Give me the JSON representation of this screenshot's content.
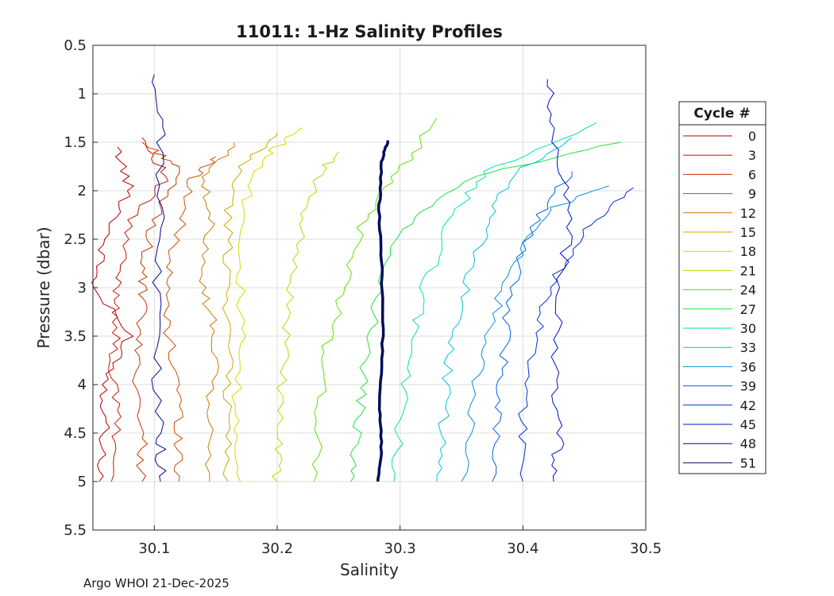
{
  "chart_data": {
    "type": "line",
    "title": "11011: 1-Hz Salinity Profiles",
    "xlabel": "Salinity",
    "ylabel": "Pressure (dbar)",
    "xlim": [
      30.05,
      30.5
    ],
    "ylim": [
      0.5,
      5.5
    ],
    "y_reversed": true,
    "xticks": [
      "30.1",
      "30.2",
      "30.3",
      "30.4",
      "30.5"
    ],
    "xtick_values": [
      30.1,
      30.2,
      30.3,
      30.4,
      30.5
    ],
    "yticks": [
      "0.5",
      "1",
      "1.5",
      "2",
      "2.5",
      "3",
      "3.5",
      "4",
      "4.5",
      "5",
      "5.5"
    ],
    "ytick_values": [
      0.5,
      1,
      1.5,
      2,
      2.5,
      3,
      3.5,
      4,
      4.5,
      5,
      5.5
    ],
    "grid": true,
    "legend_title": "Cycle #",
    "legend_position": "right",
    "highlight_series": "51",
    "series": [
      {
        "name": "0",
        "color": "#b30000",
        "points": [
          [
            30.07,
            1.55
          ],
          [
            30.08,
            2.0
          ],
          [
            30.06,
            2.5
          ],
          [
            30.05,
            3.0
          ],
          [
            30.08,
            3.5
          ],
          [
            30.06,
            4.0
          ],
          [
            30.06,
            4.5
          ],
          [
            30.055,
            5.0
          ]
        ]
      },
      {
        "name": "3",
        "color": "#c01a00",
        "points": [
          [
            30.09,
            1.45
          ],
          [
            30.11,
            1.85
          ],
          [
            30.08,
            2.3
          ],
          [
            30.07,
            2.9
          ],
          [
            30.07,
            3.3
          ],
          [
            30.065,
            3.8
          ],
          [
            30.07,
            4.4
          ],
          [
            30.065,
            5.0
          ]
        ]
      },
      {
        "name": "6",
        "color": "#c83200",
        "points": [
          [
            30.09,
            1.5
          ],
          [
            30.12,
            1.75
          ],
          [
            30.1,
            2.3
          ],
          [
            30.09,
            2.8
          ],
          [
            30.09,
            3.2
          ],
          [
            30.085,
            3.7
          ],
          [
            30.09,
            4.5
          ],
          [
            30.09,
            5.0
          ]
        ]
      },
      {
        "name": "9",
        "color": "#cc5000",
        "points": [
          [
            30.15,
            1.65
          ],
          [
            30.13,
            1.9
          ],
          [
            30.12,
            2.4
          ],
          [
            30.11,
            2.9
          ],
          [
            30.11,
            3.4
          ],
          [
            30.12,
            4.0
          ],
          [
            30.12,
            4.5
          ],
          [
            30.12,
            5.0
          ]
        ]
      },
      {
        "name": "12",
        "color": "#d07800",
        "points": [
          [
            30.165,
            1.5
          ],
          [
            30.14,
            1.9
          ],
          [
            30.145,
            2.4
          ],
          [
            30.14,
            3.0
          ],
          [
            30.15,
            3.5
          ],
          [
            30.145,
            4.2
          ],
          [
            30.145,
            5.0
          ]
        ]
      },
      {
        "name": "15",
        "color": "#cca800",
        "points": [
          [
            30.2,
            1.4
          ],
          [
            30.17,
            1.75
          ],
          [
            30.16,
            2.2
          ],
          [
            30.16,
            2.9
          ],
          [
            30.16,
            3.6
          ],
          [
            30.16,
            4.3
          ],
          [
            30.16,
            5.0
          ]
        ]
      },
      {
        "name": "18",
        "color": "#d8d800",
        "points": [
          [
            30.22,
            1.35
          ],
          [
            30.19,
            1.65
          ],
          [
            30.175,
            2.1
          ],
          [
            30.17,
            2.8
          ],
          [
            30.17,
            3.5
          ],
          [
            30.165,
            4.3
          ],
          [
            30.17,
            5.0
          ]
        ]
      },
      {
        "name": "21",
        "color": "#a8e000",
        "points": [
          [
            30.25,
            1.6
          ],
          [
            30.23,
            1.9
          ],
          [
            30.22,
            2.4
          ],
          [
            30.21,
            3.1
          ],
          [
            30.205,
            3.8
          ],
          [
            30.2,
            4.5
          ],
          [
            30.2,
            5.0
          ]
        ]
      },
      {
        "name": "24",
        "color": "#60e000",
        "points": [
          [
            30.33,
            1.25
          ],
          [
            30.3,
            1.8
          ],
          [
            30.27,
            2.3
          ],
          [
            30.255,
            3.0
          ],
          [
            30.24,
            3.6
          ],
          [
            30.235,
            4.2
          ],
          [
            30.23,
            5.0
          ]
        ]
      },
      {
        "name": "27",
        "color": "#20e040",
        "points": [
          [
            30.48,
            1.5
          ],
          [
            30.36,
            1.85
          ],
          [
            30.3,
            2.4
          ],
          [
            30.28,
            3.2
          ],
          [
            30.27,
            3.9
          ],
          [
            30.265,
            4.5
          ],
          [
            30.26,
            5.0
          ]
        ]
      },
      {
        "name": "30",
        "color": "#00e0b0",
        "points": [
          [
            30.46,
            1.3
          ],
          [
            30.37,
            1.8
          ],
          [
            30.34,
            2.3
          ],
          [
            30.32,
            3.0
          ],
          [
            30.31,
            3.6
          ],
          [
            30.3,
            4.3
          ],
          [
            30.295,
            5.0
          ]
        ]
      },
      {
        "name": "33",
        "color": "#00c0e0",
        "points": [
          [
            30.44,
            1.45
          ],
          [
            30.39,
            1.85
          ],
          [
            30.37,
            2.4
          ],
          [
            30.35,
            3.1
          ],
          [
            30.34,
            3.7
          ],
          [
            30.335,
            4.4
          ],
          [
            30.33,
            5.0
          ]
        ]
      },
      {
        "name": "36",
        "color": "#0090e0",
        "points": [
          [
            30.47,
            1.95
          ],
          [
            30.42,
            2.2
          ],
          [
            30.39,
            2.8
          ],
          [
            30.37,
            3.5
          ],
          [
            30.36,
            4.1
          ],
          [
            30.35,
            5.0
          ]
        ]
      },
      {
        "name": "39",
        "color": "#0060e0",
        "points": [
          [
            30.44,
            1.8
          ],
          [
            30.41,
            2.3
          ],
          [
            30.39,
            3.0
          ],
          [
            30.385,
            3.7
          ],
          [
            30.38,
            4.3
          ],
          [
            30.375,
            5.0
          ]
        ]
      },
      {
        "name": "42",
        "color": "#0030d0",
        "points": [
          [
            30.49,
            1.97
          ],
          [
            30.45,
            2.4
          ],
          [
            30.42,
            3.0
          ],
          [
            30.41,
            3.6
          ],
          [
            30.4,
            4.3
          ],
          [
            30.4,
            5.0
          ]
        ]
      },
      {
        "name": "45",
        "color": "#0010c0",
        "points": [
          [
            30.42,
            0.85
          ],
          [
            30.425,
            1.5
          ],
          [
            30.44,
            2.2
          ],
          [
            30.43,
            3.0
          ],
          [
            30.425,
            3.8
          ],
          [
            30.43,
            4.5
          ],
          [
            30.425,
            5.0
          ]
        ]
      },
      {
        "name": "48",
        "color": "#000890",
        "points": [
          [
            30.1,
            0.8
          ],
          [
            30.105,
            1.5
          ],
          [
            30.105,
            2.5
          ],
          [
            30.1,
            3.5
          ],
          [
            30.105,
            4.5
          ],
          [
            30.105,
            5.0
          ]
        ]
      },
      {
        "name": "51",
        "color": "#000c5a",
        "points": [
          [
            30.29,
            1.48
          ],
          [
            30.285,
            1.7
          ],
          [
            30.283,
            2.2
          ],
          [
            30.285,
            2.8
          ],
          [
            30.286,
            3.5
          ],
          [
            30.283,
            4.2
          ],
          [
            30.285,
            4.7
          ],
          [
            30.282,
            5.0
          ]
        ]
      }
    ]
  },
  "footer": "Argo WHOI 21-Dec-2025"
}
